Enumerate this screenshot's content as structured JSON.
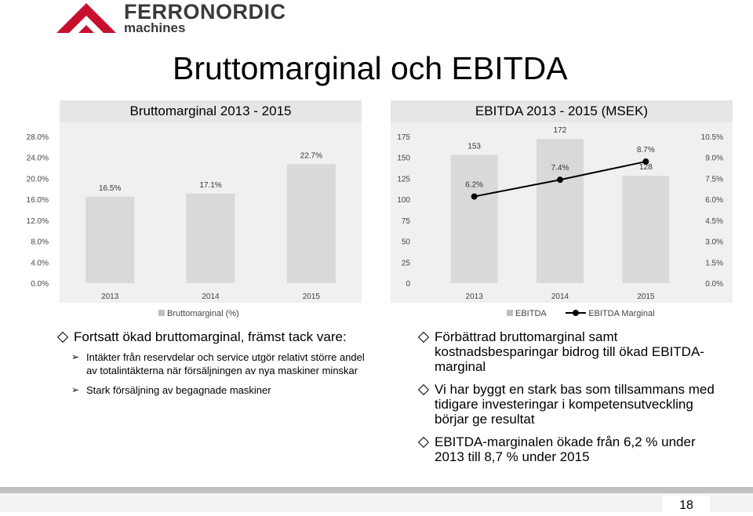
{
  "brand": {
    "name": "FERRONORDIC",
    "sub": "machines",
    "logo_icon": "triangle-logo-icon",
    "color": "#c8102e"
  },
  "title": "Bruttomarginal och EBITDA",
  "chart_data": [
    {
      "type": "bar",
      "title": "Bruttomarginal 2013 - 2015",
      "categories": [
        "2013",
        "2014",
        "2015"
      ],
      "series": [
        {
          "name": "Bruttomarginal (%)",
          "values": [
            16.5,
            17.1,
            22.7
          ],
          "labels": [
            "16.5%",
            "17.1%",
            "22.7%"
          ]
        }
      ],
      "ylim": [
        0,
        28
      ],
      "yticks": [
        "0.0%",
        "4.0%",
        "8.0%",
        "12.0%",
        "16.0%",
        "20.0%",
        "24.0%",
        "28.0%"
      ],
      "legend": "bottom",
      "color": "#d9d9d9"
    },
    {
      "type": "bar+line",
      "title": "EBITDA 2013 - 2015 (MSEK)",
      "categories": [
        "2013",
        "2014",
        "2015"
      ],
      "series": [
        {
          "name": "EBITDA",
          "values": [
            153,
            172,
            128
          ],
          "labels": [
            "153",
            "172",
            "128"
          ],
          "axis": "left"
        },
        {
          "name": "EBITDA Marginal",
          "values": [
            6.2,
            7.4,
            8.7
          ],
          "labels": [
            "6.2%",
            "7.4%",
            "8.7%"
          ],
          "axis": "right"
        }
      ],
      "ylim": [
        0,
        175
      ],
      "yticks": [
        "0",
        "25",
        "50",
        "75",
        "100",
        "125",
        "150",
        "175"
      ],
      "y2lim": [
        0,
        10.5
      ],
      "y2ticks": [
        "0.0%",
        "1.5%",
        "3.0%",
        "4.5%",
        "6.0%",
        "7.5%",
        "9.0%",
        "10.5%"
      ],
      "legend": "bottom",
      "color": "#d9d9d9"
    }
  ],
  "left_text": {
    "main": "Fortsatt ökad bruttomarginal, främst tack vare:",
    "subs": [
      "Intäkter från reservdelar och service utgör relativt större andel av totalintäkterna när försäljningen av nya maskiner minskar",
      "Stark försäljning av begagnade maskiner"
    ]
  },
  "right_text": [
    "Förbättrad bruttomarginal samt kostnadsbesparingar bidrog till ökad EBITDA-marginal",
    "Vi har byggt en stark bas som tillsammans med tidigare investeringar i kompetensutveckling börjar ge resultat",
    "EBITDA-marginalen ökade från 6,2 % under 2013 till 8,7 % under 2015"
  ],
  "page_number": "18"
}
